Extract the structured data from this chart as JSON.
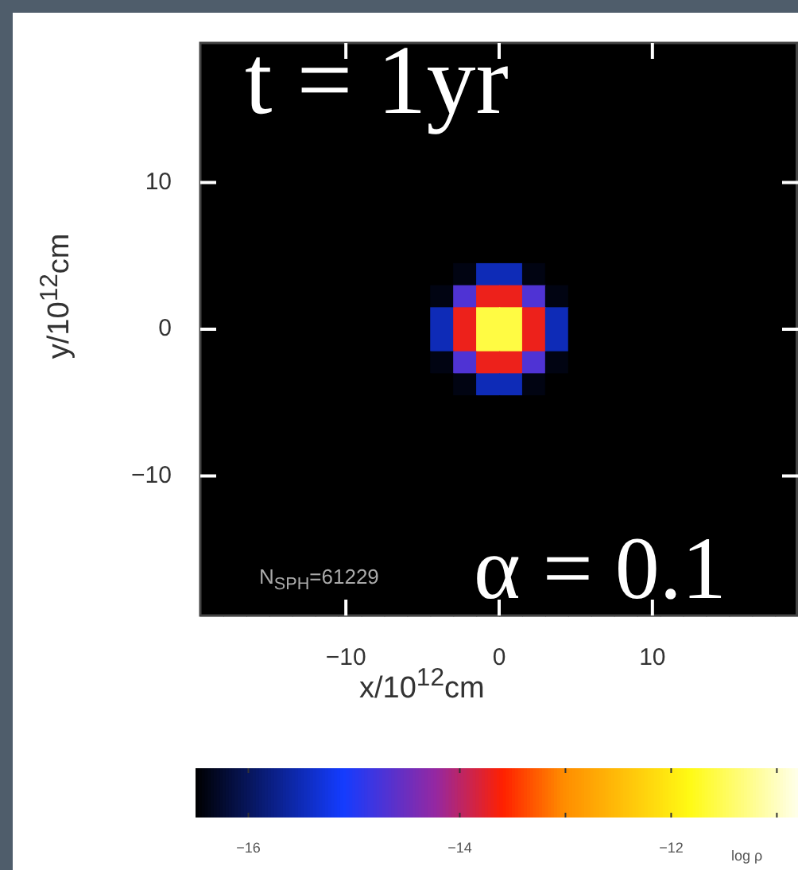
{
  "chart_data": {
    "type": "heatmap",
    "xlabel": "x/10$^{12}$cm",
    "ylabel": "y/10$^{12}$cm",
    "clabel": "log ρ",
    "annotations": [
      "t = 1yr",
      "N$_{SPH}$=61229",
      "α = 0.1"
    ],
    "xlim": [
      -19.5,
      19.5
    ],
    "ylim": [
      -19.5,
      19.5
    ],
    "xticks": [
      -10,
      0,
      10
    ],
    "yticks": [
      -10,
      0,
      10
    ],
    "clim": [
      -16.5,
      -10.8
    ],
    "cticks": [
      -16,
      -14,
      -12,
      {
        "value": -13,
        "label": null
      },
      {
        "value": -11,
        "label": null
      }
    ],
    "cells": [
      [
        -16.5,
        -16.5,
        -16.5,
        -16.5,
        -16.5,
        -16.5,
        -16.5,
        -16.5,
        -16.5,
        -16.5,
        -16.5,
        -16.5,
        -16.5,
        -16.5,
        -16.5,
        -16.5,
        -16.5,
        -16.5,
        -16.5,
        -16.5,
        -16.5,
        -16.5,
        -16.5,
        -16.5,
        -16.5,
        -16.5
      ],
      [
        -16.5,
        -16.5,
        null,
        -16.5,
        -16.5,
        -16.5,
        -16.5,
        -16.5,
        -16.5,
        -16.5,
        null,
        -16.5,
        null,
        -16.5,
        -16.5,
        -16.5,
        -16.5,
        -16.5,
        -16.5,
        -16.5,
        -16.5,
        -16.5,
        -16.5,
        -16.5,
        -16.5,
        -16.5
      ],
      [
        -16.5,
        -16.5,
        -16.5,
        -16.5,
        -16.5,
        -16.5,
        -16.5,
        -16.5,
        -16.5,
        -16.5,
        -16.5,
        -16.5,
        -16.5,
        -16.5,
        -16.5,
        -16.5,
        -16.5,
        -16.5,
        -16.5,
        -16.5,
        -16.5,
        -16.5,
        -16.5,
        -16.5,
        -16.5,
        -16.5
      ],
      [
        -16.5,
        -16.5,
        -16.5,
        -16.5,
        -16.5,
        -16.5,
        -16.5,
        -16.5,
        -16.5,
        -16.5,
        -16.5,
        -16.5,
        -16.5,
        -16.5,
        -16.5,
        -16.5,
        -16.5,
        -16.5,
        -16.5,
        -16.5,
        -16.5,
        -16.5,
        -16.5,
        -16.5,
        -16.5,
        -16.5
      ],
      [
        -16.5,
        -16.5,
        -16.5,
        -16.5,
        -16.5,
        -16.5,
        -16.5,
        -16.5,
        -16.5,
        -16.5,
        -16.5,
        -16.5,
        -16.5,
        -16.5,
        -16.5,
        -16.5,
        -16.5,
        -16.5,
        -16.5,
        -16.5,
        -16.5,
        -16.5,
        -16.5,
        -16.5,
        -16.5,
        -16.5
      ],
      [
        -16.5,
        -16.5,
        -16.5,
        -16.5,
        -16.5,
        -16.5,
        -16.5,
        -16.5,
        -16.5,
        -16.5,
        -16.5,
        -16.5,
        -16.5,
        -16.5,
        -16.5,
        -16.5,
        -16.5,
        -16.5,
        -16.5,
        -16.5,
        -16.5,
        -16.5,
        -16.5,
        -16.5,
        -16.5,
        -16.5
      ],
      [
        -16.5,
        -16.5,
        -16.5,
        -16.5,
        -16.5,
        -16.5,
        -16.5,
        -16.5,
        -16.5,
        -16.5,
        -16.5,
        -16.5,
        -16.5,
        -16.5,
        -16.5,
        -16.5,
        -16.5,
        -16.5,
        -16.5,
        -16.5,
        -16.5,
        -16.5,
        -16.5,
        -16.5,
        -16.5,
        -16.5
      ],
      [
        -16.5,
        -16.5,
        -16.5,
        -16.5,
        -16.5,
        -16.5,
        -16.5,
        -16.5,
        -16.5,
        -16.5,
        -16.5,
        -16.5,
        -16.5,
        -16.5,
        -16.5,
        -16.5,
        -16.5,
        -16.5,
        -16.5,
        -16.5,
        -16.5,
        -16.5,
        -16.5,
        -16.5,
        -16.5,
        -16.5
      ],
      [
        -16.5,
        -16.5,
        -16.5,
        -16.5,
        -16.5,
        -16.5,
        -16.5,
        -16.5,
        -16.5,
        -16.5,
        -16.5,
        -16.5,
        -16.5,
        -16.5,
        -16.5,
        -16.5,
        -16.5,
        -16.5,
        -16.5,
        -16.5,
        -16.5,
        -16.5,
        -16.5,
        -16.5,
        -16.5,
        -16.5
      ],
      [
        -16.5,
        -16.5,
        -16.5,
        -16.5,
        -16.5,
        -16.5,
        -16.5,
        -16.5,
        -16.5,
        -16.5,
        -16.5,
        -16.5,
        -16.5,
        -16.5,
        -16.5,
        -16.5,
        -16.5,
        -16.5,
        -16.5,
        -16.5,
        -16.5,
        -16.5,
        -16.5,
        -16.5,
        -16.5,
        -16.5
      ],
      [
        -16.5,
        -16.5,
        -16.5,
        -16.5,
        -16.5,
        -16.5,
        -16.5,
        -16.5,
        -16.5,
        -16.5,
        -16.5,
        -16.4,
        -15.5,
        -15.5,
        -16.4,
        -16.5,
        -16.5,
        -16.5,
        -16.5,
        -16.5,
        -16.5,
        -16.5,
        -16.5,
        -16.5,
        -16.5,
        -16.5
      ],
      [
        -16.5,
        -16.5,
        -16.5,
        -16.5,
        -16.5,
        -16.5,
        -16.5,
        -16.5,
        -16.5,
        -16.5,
        -16.4,
        -14.7,
        -13.7,
        -13.7,
        -14.7,
        -16.4,
        -16.5,
        -16.5,
        -16.5,
        -16.5,
        -16.5,
        -16.5,
        -16.5,
        -16.5,
        -16.5,
        -16.5
      ],
      [
        -16.5,
        -16.5,
        -16.5,
        -16.5,
        -16.5,
        -16.5,
        -16.5,
        -16.5,
        -16.5,
        -16.5,
        -15.5,
        -13.7,
        -11.6,
        -11.6,
        -13.7,
        -15.5,
        -16.5,
        -16.5,
        -16.5,
        -16.5,
        -16.5,
        -16.5,
        -16.5,
        -16.5,
        -16.5,
        -16.5
      ],
      [
        -16.5,
        -16.5,
        -16.5,
        -16.5,
        -16.5,
        -16.5,
        -16.5,
        -16.5,
        -16.5,
        -16.5,
        -15.5,
        -13.7,
        -11.6,
        -11.6,
        -13.7,
        -15.5,
        -16.5,
        -16.5,
        -16.5,
        -16.5,
        -16.5,
        -16.5,
        -16.5,
        -16.5,
        -16.5,
        -16.5
      ],
      [
        -16.5,
        -16.5,
        -16.5,
        -16.5,
        -16.5,
        -16.5,
        -16.5,
        -16.5,
        -16.5,
        -16.5,
        -16.4,
        -14.7,
        -13.7,
        -13.7,
        -14.7,
        -16.4,
        -16.5,
        -16.5,
        -16.5,
        -16.5,
        -16.5,
        -16.5,
        -16.5,
        -16.5,
        -16.5,
        -16.5
      ],
      [
        -16.5,
        -16.5,
        -16.5,
        -16.5,
        -16.5,
        -16.5,
        -16.5,
        -16.5,
        -16.5,
        -16.5,
        -16.5,
        -16.4,
        -15.5,
        -15.5,
        -16.4,
        -16.5,
        -16.5,
        -16.5,
        -16.5,
        -16.5,
        -16.5,
        -16.5,
        -16.5,
        -16.5,
        -16.5,
        -16.5
      ],
      [
        -16.5,
        -16.5,
        -16.5,
        -16.5,
        -16.5,
        -16.5,
        -16.5,
        -16.5,
        -16.5,
        -16.5,
        -16.5,
        -16.5,
        -16.5,
        -16.5,
        -16.5,
        -16.5,
        -16.5,
        -16.5,
        -16.5,
        -16.5,
        -16.5,
        -16.5,
        -16.5,
        -16.5,
        -16.5,
        -16.5
      ],
      [
        -16.5,
        -16.5,
        -16.5,
        -16.5,
        -16.5,
        -16.5,
        -16.5,
        -16.5,
        -16.5,
        -16.5,
        -16.5,
        -16.5,
        -16.5,
        -16.5,
        -16.5,
        -16.5,
        -16.5,
        -16.5,
        -16.5,
        -16.5,
        -16.5,
        -16.5,
        -16.5,
        -16.5,
        -16.5,
        -16.5
      ],
      [
        -16.5,
        -16.5,
        -16.5,
        -16.5,
        -16.5,
        -16.5,
        -16.5,
        -16.5,
        -16.5,
        -16.5,
        -16.5,
        -16.5,
        -16.5,
        -16.5,
        -16.5,
        -16.5,
        -16.5,
        -16.5,
        -16.5,
        -16.5,
        -16.5,
        -16.5,
        -16.5,
        -16.5,
        -16.5,
        -16.5
      ],
      [
        -16.5,
        -16.5,
        -16.5,
        -16.5,
        -16.5,
        -16.5,
        -16.5,
        -16.5,
        -16.5,
        -16.5,
        -16.5,
        -16.5,
        -16.5,
        -16.5,
        -16.5,
        -16.5,
        -16.5,
        -16.5,
        -16.5,
        -16.5,
        -16.5,
        -16.5,
        -16.5,
        -16.5,
        -16.5,
        -16.5
      ],
      [
        -16.5,
        -16.5,
        -16.5,
        -16.5,
        -16.5,
        -16.5,
        -16.5,
        -16.5,
        -16.5,
        -16.5,
        -16.5,
        -16.5,
        -16.5,
        -16.5,
        -16.5,
        -16.5,
        -16.5,
        -16.5,
        -16.5,
        -16.5,
        -16.5,
        -16.5,
        -16.5,
        -16.5,
        -16.5,
        -16.5
      ],
      [
        -16.5,
        -16.5,
        -16.5,
        -16.5,
        -16.5,
        -16.5,
        -16.5,
        -16.5,
        -16.5,
        -16.5,
        -16.5,
        -16.5,
        -16.5,
        -16.5,
        -16.5,
        -16.5,
        -16.5,
        -16.5,
        -16.5,
        -16.5,
        -16.5,
        -16.5,
        -16.5,
        -16.5,
        -16.5,
        -16.5
      ],
      [
        -16.5,
        -16.5,
        -16.5,
        -16.5,
        -16.5,
        -16.5,
        -16.5,
        -16.5,
        -16.5,
        -16.5,
        -16.5,
        -16.5,
        -16.5,
        -16.5,
        -16.5,
        -16.5,
        -16.5,
        -16.5,
        -16.5,
        -16.5,
        -16.5,
        -16.5,
        -16.5,
        -16.5,
        -16.5,
        -16.5
      ],
      [
        -16.5,
        -16.5,
        -16.5,
        -16.5,
        -16.5,
        -16.5,
        -16.5,
        -16.5,
        -16.5,
        -16.5,
        -16.5,
        -16.5,
        -16.5,
        -16.5,
        -16.5,
        -16.5,
        -16.5,
        -16.5,
        -16.5,
        -16.5,
        -16.5,
        -16.5,
        -16.5,
        -16.5,
        -16.5,
        -16.5
      ],
      [
        -16.5,
        -16.5,
        -16.5,
        -16.5,
        -16.5,
        -16.5,
        -16.5,
        -16.5,
        -16.5,
        -16.5,
        -16.5,
        -16.5,
        -16.5,
        -16.5,
        -16.5,
        -16.5,
        -16.5,
        -16.5,
        -16.5,
        -16.5,
        -16.5,
        -16.5,
        -16.5,
        -16.5,
        -16.5,
        -16.5
      ],
      [
        -16.5,
        -16.5,
        -16.5,
        -16.5,
        -16.5,
        -16.5,
        -16.5,
        -16.5,
        -16.5,
        -16.5,
        -16.5,
        -16.5,
        -16.5,
        -16.5,
        -16.5,
        -16.5,
        -16.5,
        -16.5,
        -16.5,
        -16.5,
        -16.5,
        -16.5,
        -16.5,
        -16.5,
        -16.5,
        -16.5
      ]
    ]
  }
}
